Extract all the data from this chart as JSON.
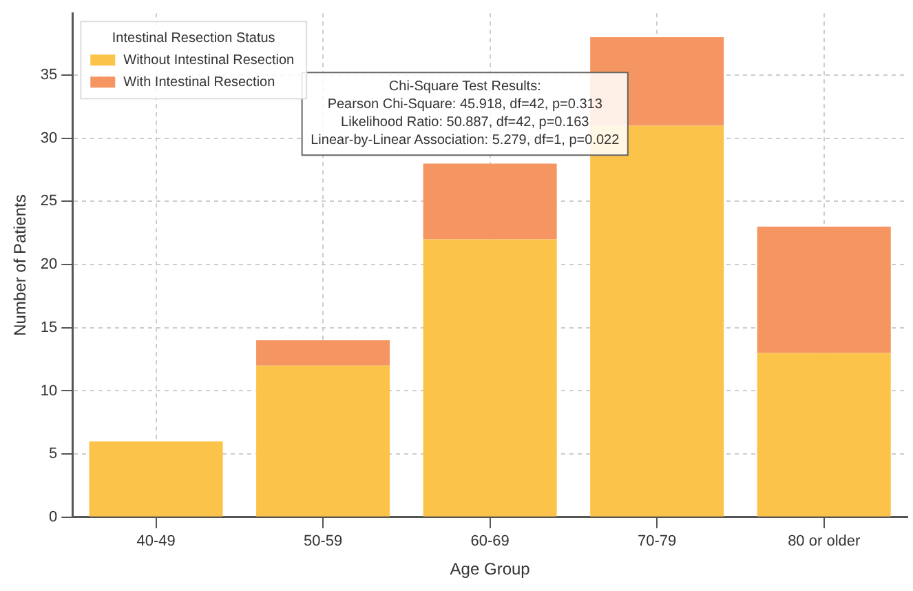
{
  "chart_data": {
    "type": "bar",
    "xlabel": "Age Group",
    "ylabel": "Number of Patients",
    "legend_title": "Intestinal Resection Status",
    "categories": [
      "40-49",
      "50-59",
      "60-69",
      "70-79",
      "80 or older"
    ],
    "series": [
      {
        "name": "Without Intestinal Resection",
        "color": "#fbc34a",
        "values": [
          6,
          12,
          22,
          31,
          13
        ]
      },
      {
        "name": "With Intestinal Resection",
        "color": "#f59562",
        "values": [
          0,
          2,
          6,
          7,
          10
        ]
      }
    ],
    "stacked": true,
    "ylim": [
      0,
      39.9
    ],
    "yticks": [
      0,
      5,
      10,
      15,
      20,
      25,
      30,
      35
    ],
    "grid": true,
    "legend": "top left",
    "annotations": [
      "Chi-Square Test Results:",
      "Pearson Chi-Square: 45.918, df=42, p=0.313",
      "Likelihood Ratio: 50.887, df=42, p=0.163",
      "Linear-by-Linear Association: 5.279, df=1, p=0.022"
    ]
  }
}
